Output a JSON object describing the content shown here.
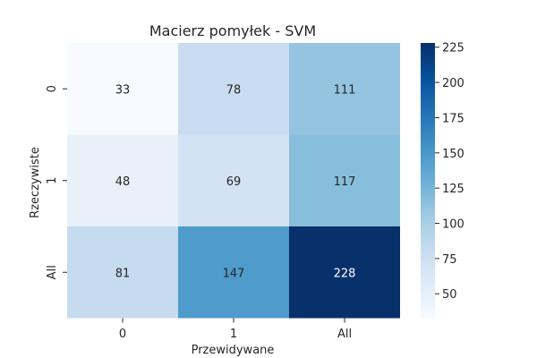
{
  "chart_data": {
    "type": "heatmap",
    "title": "Macierz pomyłek - SVM",
    "xlabel": "Przewidywane",
    "ylabel": "Rzeczywiste",
    "x_categories": [
      "0",
      "1",
      "All"
    ],
    "y_categories": [
      "0",
      "1",
      "All"
    ],
    "values": [
      [
        33,
        78,
        111
      ],
      [
        48,
        69,
        117
      ],
      [
        81,
        147,
        228
      ]
    ],
    "colormap": "Blues",
    "color_range": [
      33,
      228
    ],
    "colorbar_ticks": [
      50,
      75,
      100,
      125,
      150,
      175,
      200,
      225
    ]
  }
}
